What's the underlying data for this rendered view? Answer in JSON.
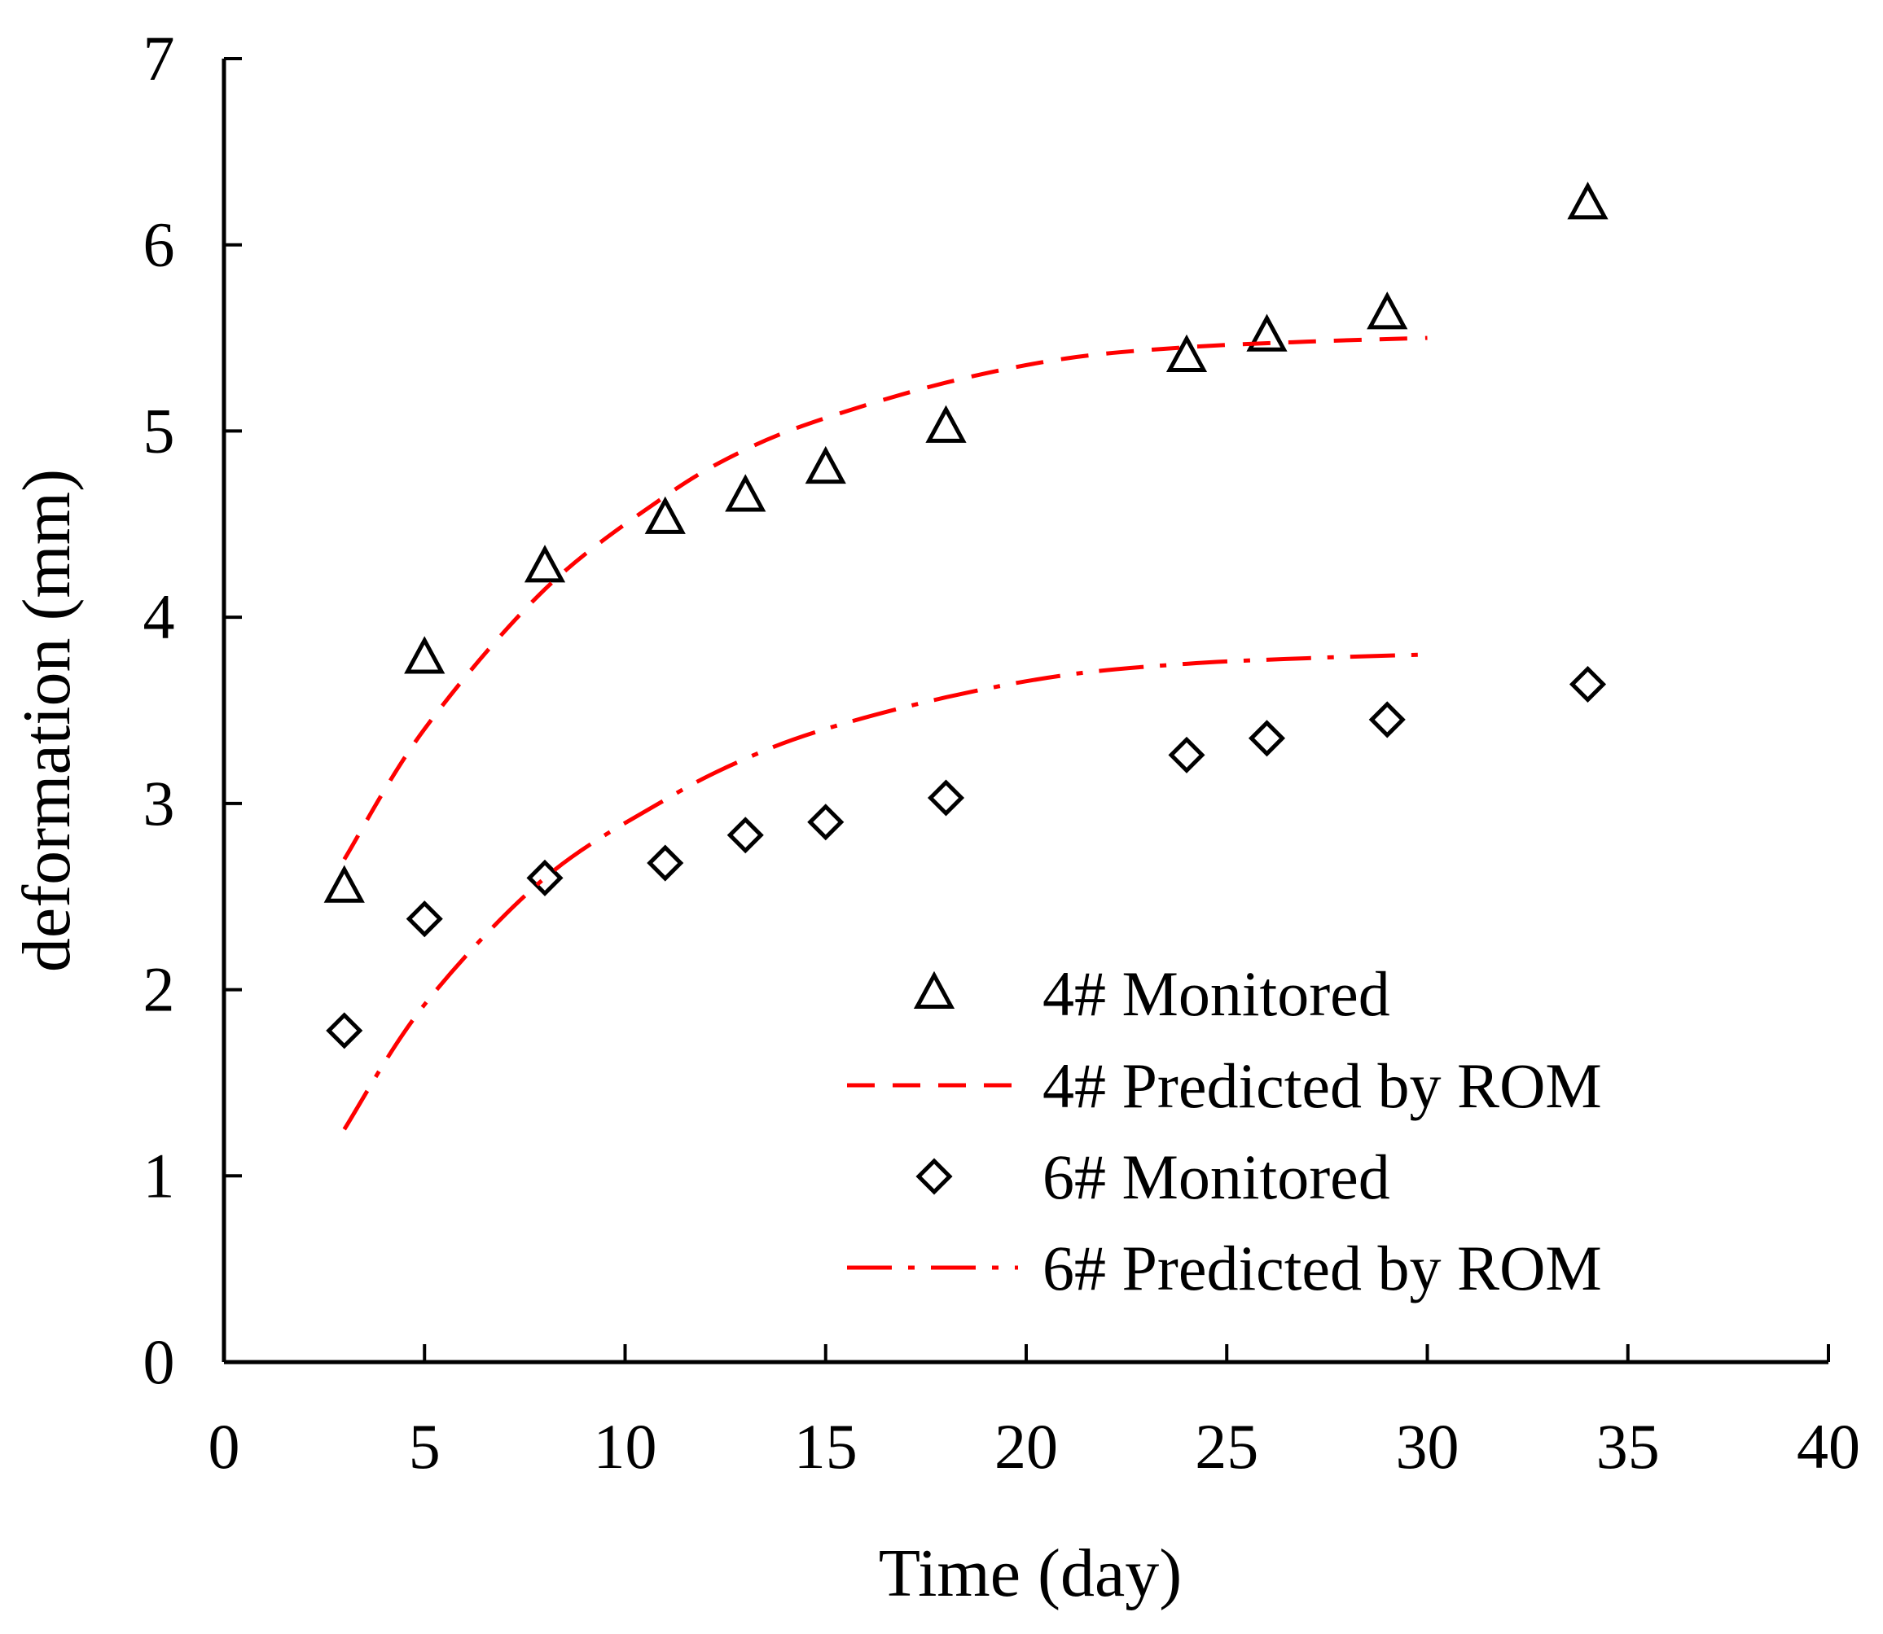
{
  "chart_data": {
    "type": "scatter",
    "title": "",
    "xlabel": "Time (day)",
    "ylabel": "deformation (mm)",
    "xlim": [
      0,
      40
    ],
    "ylim": [
      0,
      7
    ],
    "xticks": [
      0,
      5,
      10,
      15,
      20,
      25,
      30,
      35,
      40
    ],
    "yticks": [
      0,
      1,
      2,
      3,
      4,
      5,
      6,
      7
    ],
    "grid": false,
    "legend_position": "bottom-right",
    "series": [
      {
        "name": "4# Monitored",
        "kind": "markers",
        "marker": "triangle",
        "color": "#000000",
        "x": [
          3,
          5,
          8,
          11,
          13,
          15,
          18,
          24,
          26,
          29,
          34
        ],
        "y": [
          2.55,
          3.78,
          4.27,
          4.53,
          4.65,
          4.8,
          5.02,
          5.4,
          5.51,
          5.63,
          6.22
        ]
      },
      {
        "name": "4# Predicted by ROM",
        "kind": "line",
        "dash": "dashed",
        "color": "#ff0000",
        "x": [
          3,
          5,
          8,
          11,
          13,
          15,
          18,
          21,
          24,
          27,
          30
        ],
        "y": [
          2.7,
          3.4,
          4.15,
          4.65,
          4.9,
          5.07,
          5.26,
          5.39,
          5.45,
          5.48,
          5.5
        ]
      },
      {
        "name": "6# Monitored",
        "kind": "markers",
        "marker": "diamond",
        "color": "#000000",
        "x": [
          3,
          5,
          8,
          11,
          13,
          15,
          18,
          24,
          26,
          29,
          34
        ],
        "y": [
          1.78,
          2.38,
          2.6,
          2.68,
          2.83,
          2.9,
          3.03,
          3.26,
          3.35,
          3.45,
          3.64
        ]
      },
      {
        "name": "6# Predicted by ROM",
        "kind": "line",
        "dash": "dash-dot",
        "color": "#ff0000",
        "x": [
          3,
          5,
          8,
          11,
          13,
          15,
          18,
          21,
          24,
          27,
          30
        ],
        "y": [
          1.25,
          1.92,
          2.6,
          3.02,
          3.24,
          3.4,
          3.57,
          3.69,
          3.75,
          3.78,
          3.8
        ]
      }
    ]
  }
}
